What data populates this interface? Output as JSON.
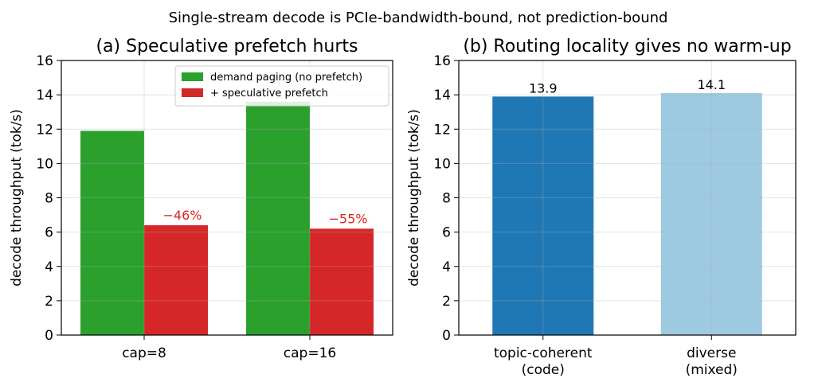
{
  "suptitle": "Single-stream decode is PCIe-bandwidth-bound, not prediction-bound",
  "chart_data": [
    {
      "type": "bar",
      "title": "(a) Speculative prefetch hurts",
      "xlabel": "",
      "ylabel": "decode throughput (tok/s)",
      "ylim": [
        0,
        16
      ],
      "yticks": [
        0,
        2,
        4,
        6,
        8,
        10,
        12,
        14,
        16
      ],
      "grid": true,
      "legend_position": "top-right",
      "categories": [
        "cap=8",
        "cap=16"
      ],
      "series": [
        {
          "name": "demand paging (no prefetch)",
          "color": "#2ca02c",
          "values": [
            11.9,
            13.6
          ]
        },
        {
          "name": "+ speculative prefetch",
          "color": "#d62728",
          "values": [
            6.4,
            6.2
          ]
        }
      ],
      "annotations": [
        {
          "category": "cap=8",
          "series": 1,
          "text": "−46%",
          "color": "#d62728"
        },
        {
          "category": "cap=16",
          "series": 1,
          "text": "−55%",
          "color": "#d62728"
        }
      ]
    },
    {
      "type": "bar",
      "title": "(b) Routing locality gives no warm-up",
      "xlabel": "",
      "ylabel": "decode throughput (tok/s)",
      "ylim": [
        0,
        16
      ],
      "yticks": [
        0,
        2,
        4,
        6,
        8,
        10,
        12,
        14,
        16
      ],
      "grid": true,
      "categories": [
        "topic-coherent\n(code)",
        "diverse\n(mixed)"
      ],
      "series": [
        {
          "values": [
            13.9,
            14.1
          ],
          "colors": [
            "#1f77b4",
            "#9ecae1"
          ]
        }
      ],
      "value_labels": [
        "13.9",
        "14.1"
      ]
    }
  ]
}
